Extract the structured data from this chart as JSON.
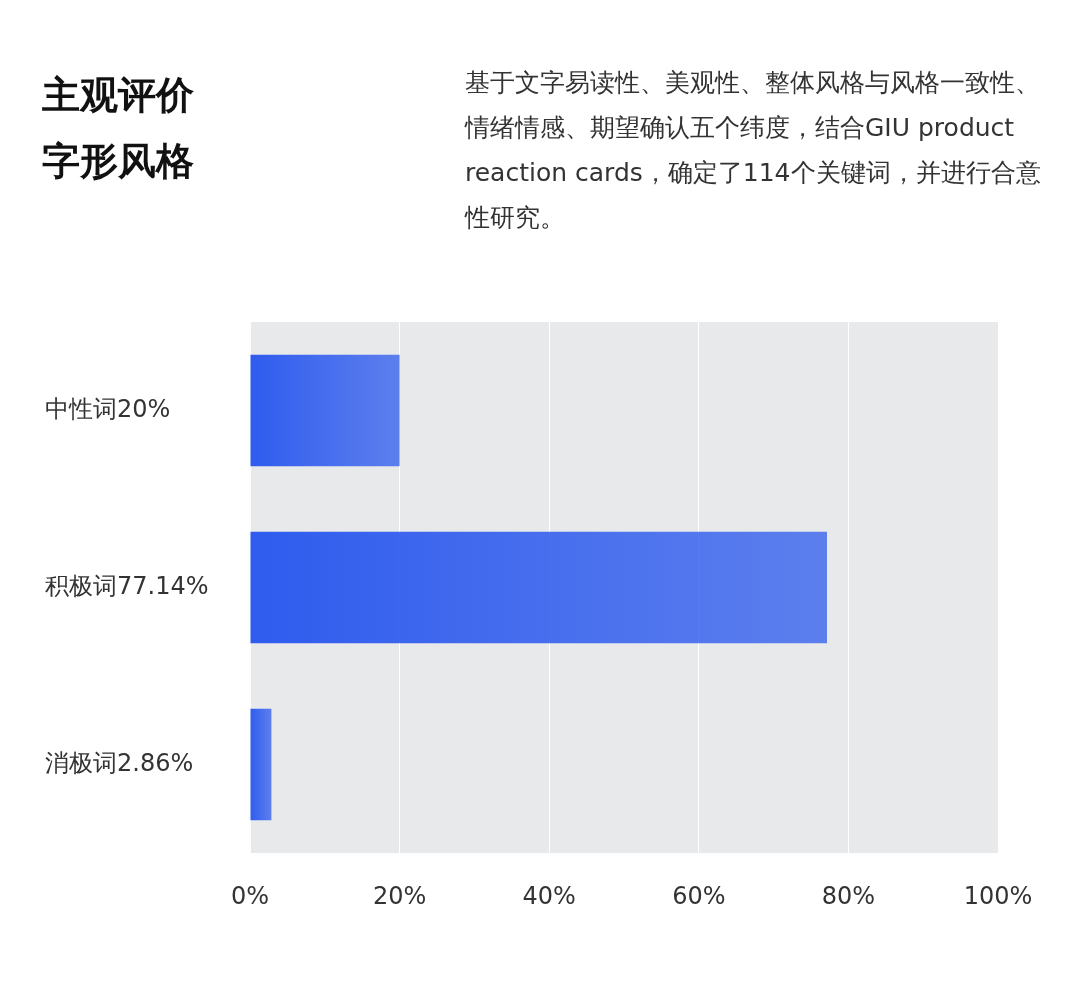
{
  "chart_data": {
    "type": "bar",
    "orientation": "horizontal",
    "title": "主观评价",
    "subtitle": "字形风格",
    "annotations": [
      "基于文字易读性、美观性、整体风格与风格一致性、情绪情感、期望确认五个纬度，结合GIU product reaction cards，确定了114个关键词，并进行合意性研究。"
    ],
    "categories": [
      "中性词20%",
      "积极词77.14%",
      "消极词2.86%"
    ],
    "values": [
      20,
      77.14,
      2.86
    ],
    "color": "#2f5cee",
    "xlim": [
      0,
      100
    ],
    "xticks": [
      {
        "value": 0,
        "label": "0%"
      },
      {
        "value": 20,
        "label": "20%"
      },
      {
        "value": 40,
        "label": "40%"
      },
      {
        "value": 60,
        "label": "60%"
      },
      {
        "value": 80,
        "label": "80%"
      },
      {
        "value": 100,
        "label": "100%"
      }
    ],
    "grid": "x",
    "legend": false
  }
}
